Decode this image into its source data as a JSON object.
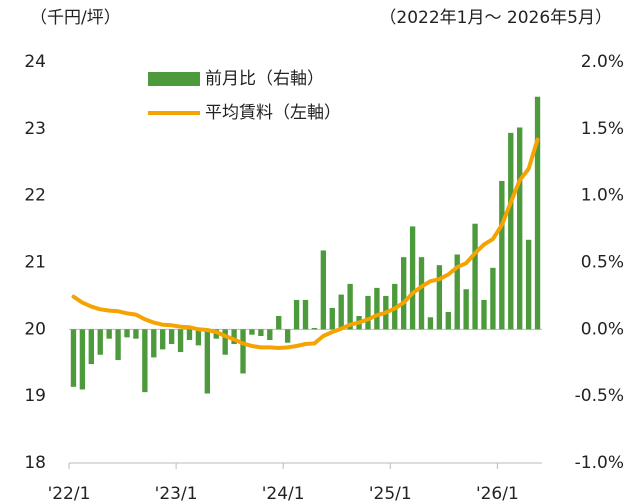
{
  "chart_data": {
    "type": "bar_line",
    "unit_label": "（千円/坪）",
    "period_label": "（2022年1月～ 2026年5月）",
    "categories": [
      "'22/1",
      null,
      null,
      null,
      null,
      null,
      null,
      null,
      null,
      null,
      null,
      null,
      "'23/1",
      null,
      null,
      null,
      null,
      null,
      null,
      null,
      null,
      null,
      null,
      null,
      "'24/1",
      null,
      null,
      null,
      null,
      null,
      null,
      null,
      null,
      null,
      null,
      null,
      "'25/1",
      null,
      null,
      null,
      null,
      null,
      null,
      null,
      null,
      null,
      null,
      null,
      "'26/1",
      null,
      null,
      null,
      null
    ],
    "series": [
      {
        "name": "前月比（右軸）",
        "kind": "bar",
        "axis": "y2",
        "color": "#4c9a3c",
        "values": [
          -0.43,
          -0.45,
          -0.26,
          -0.19,
          -0.07,
          -0.23,
          -0.06,
          -0.07,
          -0.47,
          -0.21,
          -0.15,
          -0.11,
          -0.17,
          -0.08,
          -0.12,
          -0.48,
          -0.07,
          -0.19,
          -0.11,
          -0.33,
          -0.04,
          -0.05,
          -0.08,
          0.1,
          -0.1,
          0.22,
          0.22,
          0.01,
          0.59,
          0.16,
          0.26,
          0.34,
          0.1,
          0.25,
          0.31,
          0.25,
          0.34,
          0.54,
          0.77,
          0.54,
          0.09,
          0.48,
          0.13,
          0.56,
          0.3,
          0.79,
          0.22,
          0.46,
          1.11,
          1.47,
          1.51,
          0.67,
          1.74
        ]
      },
      {
        "name": "平均賃料（左軸）",
        "kind": "line",
        "axis": "y",
        "color": "#f5a300",
        "values": [
          20.49,
          20.4,
          20.34,
          20.3,
          20.28,
          20.27,
          20.24,
          20.22,
          20.15,
          20.1,
          20.07,
          20.06,
          20.04,
          20.03,
          20.0,
          19.99,
          19.96,
          19.9,
          19.85,
          19.79,
          19.75,
          19.73,
          19.73,
          19.72,
          19.73,
          19.75,
          19.78,
          19.79,
          19.9,
          19.96,
          20.01,
          20.07,
          20.1,
          20.15,
          20.21,
          20.25,
          20.31,
          20.4,
          20.54,
          20.64,
          20.72,
          20.75,
          20.82,
          20.93,
          20.99,
          21.14,
          21.27,
          21.35,
          21.56,
          21.9,
          22.23,
          22.4,
          22.84
        ]
      }
    ],
    "ylim": [
      18,
      24
    ],
    "yticks": [
      18,
      19,
      20,
      21,
      22,
      23,
      24
    ],
    "y2lim": [
      -1.0,
      2.0
    ],
    "y2ticks": [
      {
        "value": -1.0,
        "label": "-1.0%"
      },
      {
        "value": -0.5,
        "label": "-0.5%"
      },
      {
        "value": 0.0,
        "label": "0.0%"
      },
      {
        "value": 0.5,
        "label": "0.5%"
      },
      {
        "value": 1.0,
        "label": "1.0%"
      },
      {
        "value": 1.5,
        "label": "1.5%"
      },
      {
        "value": 2.0,
        "label": "2.0%"
      }
    ]
  }
}
